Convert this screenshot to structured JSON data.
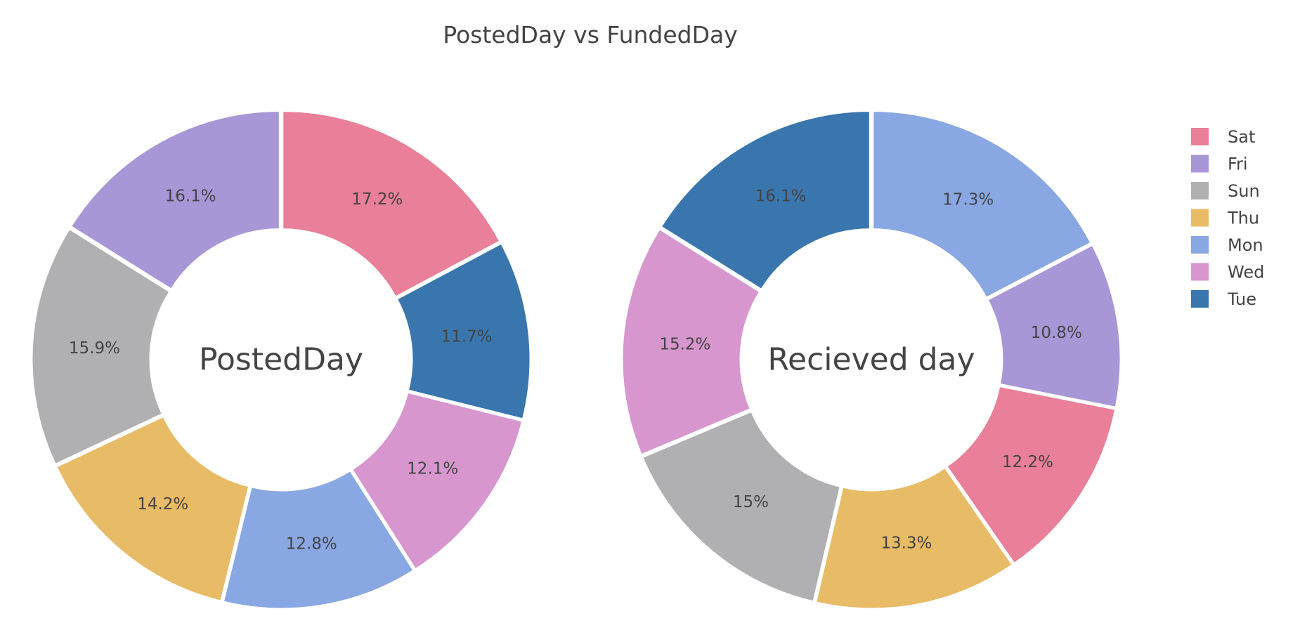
{
  "chart_data": {
    "type": "pie",
    "title": "PostedDay vs FundedDay",
    "legend_position": "top-right",
    "legend": [
      {
        "label": "Sat",
        "color": "#E97F98"
      },
      {
        "label": "Fri",
        "color": "#A897D6"
      },
      {
        "label": "Sun",
        "color": "#B0B0B2"
      },
      {
        "label": "Thu",
        "color": "#E8BB67"
      },
      {
        "label": "Mon",
        "color": "#89A7E2"
      },
      {
        "label": "Wed",
        "color": "#D797CE"
      },
      {
        "label": "Tue",
        "color": "#3A76AE"
      }
    ],
    "pies": [
      {
        "center_label": "PostedDay",
        "slices": [
          {
            "label": "Sat",
            "value": 17.2,
            "text": "17.2%"
          },
          {
            "label": "Tue",
            "value": 11.7,
            "text": "11.7%"
          },
          {
            "label": "Wed",
            "value": 12.1,
            "text": "12.1%"
          },
          {
            "label": "Mon",
            "value": 12.8,
            "text": "12.8%"
          },
          {
            "label": "Thu",
            "value": 14.2,
            "text": "14.2%"
          },
          {
            "label": "Sun",
            "value": 15.9,
            "text": "15.9%"
          },
          {
            "label": "Fri",
            "value": 16.1,
            "text": "16.1%"
          }
        ]
      },
      {
        "center_label": "Recieved day",
        "slices": [
          {
            "label": "Mon",
            "value": 17.3,
            "text": "17.3%"
          },
          {
            "label": "Fri",
            "value": 10.8,
            "text": "10.8%"
          },
          {
            "label": "Sat",
            "value": 12.2,
            "text": "12.2%"
          },
          {
            "label": "Thu",
            "value": 13.3,
            "text": "13.3%"
          },
          {
            "label": "Sun",
            "value": 15.0,
            "text": "15%"
          },
          {
            "label": "Wed",
            "value": 15.2,
            "text": "15.2%"
          },
          {
            "label": "Tue",
            "value": 16.1,
            "text": "16.1%"
          }
        ]
      }
    ]
  }
}
